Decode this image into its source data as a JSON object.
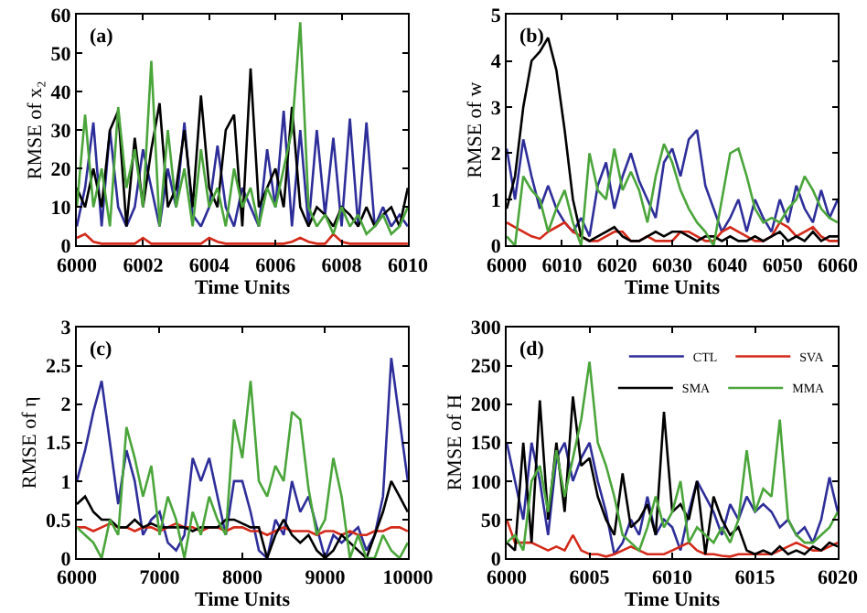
{
  "chart_data": [
    {
      "type": "line",
      "xlabel": "Time Units",
      "ylabel": "RMSE of x₂",
      "annotations": [
        "(a)"
      ],
      "x": [
        6000,
        6000.25,
        6000.5,
        6000.75,
        6001,
        6001.25,
        6001.5,
        6001.75,
        6002,
        6002.25,
        6002.5,
        6002.75,
        6003,
        6003.25,
        6003.5,
        6003.75,
        6004,
        6004.25,
        6004.5,
        6004.75,
        6005,
        6005.25,
        6005.5,
        6005.75,
        6006,
        6006.25,
        6006.5,
        6006.75,
        6007,
        6007.25,
        6007.5,
        6007.75,
        6008,
        6008.25,
        6008.5,
        6008.75,
        6009,
        6009.25,
        6009.5,
        6009.75,
        6010
      ],
      "xlim": [
        6000,
        6010
      ],
      "xticks": [
        6000,
        6002,
        6004,
        6006,
        6008,
        6010
      ],
      "ylim": [
        0,
        60
      ],
      "yticks": [
        0,
        10,
        20,
        30,
        40,
        50,
        60
      ],
      "grid": false,
      "series": [
        {
          "color": "#2e2e9a",
          "values": [
            5,
            15,
            32,
            5,
            30,
            10,
            5,
            10,
            25,
            15,
            5,
            20,
            10,
            32,
            8,
            5,
            10,
            26,
            10,
            5,
            15,
            10,
            5,
            25,
            10,
            35,
            5,
            30,
            5,
            30,
            8,
            28,
            5,
            33,
            5,
            32,
            5,
            10,
            5,
            8,
            5
          ]
        },
        {
          "color": "#d42a1a",
          "values": [
            2,
            3,
            1,
            0.5,
            0.5,
            0.5,
            0.5,
            0.5,
            2,
            0.5,
            0.5,
            0.5,
            0.5,
            0.5,
            0.5,
            0.5,
            2,
            1,
            0.5,
            0.5,
            0.5,
            0.5,
            0.5,
            0.5,
            0.5,
            0.5,
            1,
            2,
            1,
            0.5,
            0.5,
            3,
            1,
            0.5,
            0.5,
            0.5,
            0.5,
            0.5,
            0.5,
            0.5,
            0.5
          ]
        },
        {
          "color": "#000000",
          "values": [
            15,
            10,
            20,
            10,
            30,
            35,
            5,
            28,
            10,
            25,
            37,
            10,
            15,
            30,
            10,
            39,
            15,
            10,
            30,
            34,
            5,
            46,
            10,
            15,
            20,
            10,
            36,
            10,
            5,
            10,
            8,
            5,
            10,
            8,
            5,
            10,
            5,
            8,
            10,
            5,
            15
          ]
        },
        {
          "color": "#4aa53a",
          "values": [
            10,
            34,
            10,
            20,
            5,
            36,
            15,
            25,
            10,
            48,
            5,
            30,
            10,
            20,
            5,
            25,
            10,
            15,
            5,
            20,
            10,
            15,
            5,
            15,
            10,
            20,
            30,
            58,
            10,
            5,
            8,
            3,
            10,
            5,
            8,
            3,
            5,
            8,
            3,
            5,
            10
          ]
        }
      ]
    },
    {
      "type": "line",
      "xlabel": "Time Units",
      "ylabel": "RMSE of w",
      "annotations": [
        "(b)"
      ],
      "x": [
        6000,
        6001.5,
        6003,
        6004.5,
        6006,
        6007.5,
        6009,
        6010.5,
        6012,
        6013.5,
        6015,
        6016.5,
        6018,
        6019.5,
        6021,
        6022.5,
        6024,
        6025.5,
        6027,
        6028.5,
        6030,
        6031.5,
        6033,
        6034.5,
        6036,
        6037.5,
        6039,
        6040.5,
        6042,
        6043.5,
        6045,
        6046.5,
        6048,
        6049.5,
        6051,
        6052.5,
        6054,
        6055.5,
        6057,
        6058.5,
        6060
      ],
      "xlim": [
        6000,
        6060
      ],
      "xticks": [
        6000,
        6010,
        6020,
        6030,
        6040,
        6050,
        6060
      ],
      "ylim": [
        0,
        5
      ],
      "yticks": [
        0,
        1,
        2,
        3,
        4,
        5
      ],
      "grid": false,
      "series": [
        {
          "color": "#2e2e9a",
          "values": [
            2.1,
            1.0,
            2.3,
            1.5,
            0.8,
            1.3,
            0.8,
            0.5,
            0.3,
            0.6,
            0.2,
            1.3,
            1.8,
            0.8,
            1.5,
            2.0,
            1.4,
            1.0,
            0.6,
            1.8,
            2.1,
            1.5,
            2.3,
            2.5,
            1.3,
            0.8,
            0.3,
            0.6,
            1.0,
            0.3,
            1.0,
            0.6,
            0.3,
            1.0,
            0.5,
            1.3,
            0.8,
            0.5,
            1.2,
            0.6,
            1.0
          ]
        },
        {
          "color": "#d42a1a",
          "values": [
            0.5,
            0.4,
            0.3,
            0.2,
            0.15,
            0.3,
            0.4,
            0.5,
            0.3,
            0.2,
            0.1,
            0.1,
            0.2,
            0.3,
            0.3,
            0.1,
            0.1,
            0.2,
            0.1,
            0.1,
            0.1,
            0.3,
            0.3,
            0.2,
            0.1,
            0.1,
            0.3,
            0.4,
            0.3,
            0.2,
            0.1,
            0.1,
            0.2,
            0.5,
            0.4,
            0.2,
            0.3,
            0.4,
            0.2,
            0.1,
            0.1
          ]
        },
        {
          "color": "#000000",
          "values": [
            0.8,
            1.5,
            3.0,
            4.0,
            4.2,
            4.5,
            3.8,
            2.5,
            1.0,
            0.2,
            0.1,
            0.2,
            0.3,
            0.4,
            0.2,
            0.1,
            0.1,
            0.2,
            0.3,
            0.2,
            0.3,
            0.3,
            0.2,
            0.1,
            0.2,
            0.2,
            0.1,
            0.2,
            0.1,
            0.1,
            0.2,
            0.1,
            0.2,
            0.3,
            0.1,
            0.2,
            0.1,
            0.3,
            0.1,
            0.2,
            0.2
          ]
        },
        {
          "color": "#4aa53a",
          "values": [
            0.2,
            0,
            1.5,
            1.2,
            1.0,
            0.3,
            0.8,
            1.2,
            0.5,
            0,
            2.0,
            1.2,
            1.0,
            2.1,
            1.2,
            1.6,
            1.2,
            0.5,
            1.5,
            2.2,
            1.8,
            1.2,
            0.8,
            0.5,
            0.3,
            0,
            1.0,
            2.0,
            2.1,
            1.5,
            0.8,
            0.5,
            0.6,
            0.5,
            0.8,
            1.0,
            1.5,
            1.2,
            0.8,
            0.6,
            0.5
          ]
        }
      ]
    },
    {
      "type": "line",
      "xlabel": "Time Units",
      "ylabel": "RMSE of η",
      "annotations": [
        "(c)"
      ],
      "x": [
        6000,
        6100,
        6200,
        6300,
        6400,
        6500,
        6600,
        6700,
        6800,
        6900,
        7000,
        7100,
        7200,
        7300,
        7400,
        7500,
        7600,
        7700,
        7800,
        7900,
        8000,
        8100,
        8200,
        8300,
        8400,
        8500,
        8600,
        8700,
        8800,
        8900,
        9000,
        9100,
        9200,
        9300,
        9400,
        9500,
        9600,
        9700,
        9800,
        9900,
        10000
      ],
      "xlim": [
        6000,
        10000
      ],
      "xticks": [
        6000,
        7000,
        8000,
        9000,
        10000
      ],
      "ylim": [
        0,
        3
      ],
      "yticks": [
        0,
        0.5,
        1,
        1.5,
        2,
        2.5,
        3
      ],
      "grid": false,
      "series": [
        {
          "color": "#2e2e9a",
          "values": [
            1.0,
            1.4,
            1.9,
            2.3,
            1.5,
            0.7,
            1.4,
            1.0,
            0.3,
            0.5,
            0.6,
            0.2,
            0.1,
            0.3,
            1.3,
            1.0,
            1.3,
            0.8,
            0.3,
            1.0,
            1.0,
            0.6,
            0.1,
            0.0,
            0.5,
            0.3,
            1.0,
            0.6,
            0.8,
            0.4,
            0.0,
            0.3,
            0.2,
            0.3,
            0.4,
            0.1,
            0.3,
            0.8,
            2.6,
            1.8,
            1.0
          ]
        },
        {
          "color": "#d42a1a",
          "values": [
            0.4,
            0.4,
            0.35,
            0.4,
            0.45,
            0.4,
            0.4,
            0.35,
            0.4,
            0.4,
            0.35,
            0.4,
            0.45,
            0.4,
            0.4,
            0.35,
            0.4,
            0.4,
            0.35,
            0.4,
            0.4,
            0.35,
            0.35,
            0.3,
            0.35,
            0.4,
            0.35,
            0.35,
            0.35,
            0.3,
            0.35,
            0.35,
            0.3,
            0.35,
            0.3,
            0.3,
            0.35,
            0.35,
            0.4,
            0.4,
            0.35
          ]
        },
        {
          "color": "#000000",
          "values": [
            0.7,
            0.8,
            0.6,
            0.5,
            0.5,
            0.4,
            0.4,
            0.5,
            0.4,
            0.45,
            0.4,
            0.4,
            0.4,
            0.4,
            0.35,
            0.4,
            0.4,
            0.4,
            0.5,
            0.5,
            0.45,
            0.4,
            0.4,
            0.0,
            0.3,
            0.5,
            0.3,
            0.2,
            0.3,
            0.1,
            0.0,
            0.1,
            0.3,
            0.2,
            0.1,
            0.0,
            0.3,
            0.6,
            1.0,
            0.8,
            0.6
          ]
        },
        {
          "color": "#4aa53a",
          "values": [
            0.4,
            0.3,
            0.2,
            0.0,
            0.5,
            0.3,
            1.7,
            1.3,
            0.8,
            1.2,
            0.3,
            0.8,
            0.5,
            0.0,
            0.6,
            0.3,
            0.8,
            0.5,
            0.3,
            1.8,
            1.3,
            2.3,
            1.0,
            0.8,
            1.2,
            1.0,
            1.9,
            1.8,
            0.9,
            0.3,
            0.5,
            1.3,
            0.8,
            0.0,
            0.3,
            0.0,
            0.0,
            0.3,
            0.1,
            0.0,
            0.2
          ]
        }
      ]
    },
    {
      "type": "line",
      "xlabel": "Time Units",
      "ylabel": "RMSE of H",
      "annotations": [
        "(d)"
      ],
      "legend": "top right",
      "x": [
        6000,
        6000.5,
        6001,
        6001.5,
        6002,
        6002.5,
        6003,
        6003.5,
        6004,
        6004.5,
        6005,
        6005.5,
        6006,
        6006.5,
        6007,
        6007.5,
        6008,
        6008.5,
        6009,
        6009.5,
        6010,
        6010.5,
        6011,
        6011.5,
        6012,
        6012.5,
        6013,
        6013.5,
        6014,
        6014.5,
        6015,
        6015.5,
        6016,
        6016.5,
        6017,
        6017.5,
        6018,
        6018.5,
        6019,
        6019.5,
        6020
      ],
      "xlim": [
        6000,
        6020
      ],
      "xticks": [
        6000,
        6005,
        6010,
        6015,
        6020
      ],
      "ylim": [
        0,
        300
      ],
      "yticks": [
        0,
        50,
        100,
        150,
        200,
        250,
        300
      ],
      "grid": false,
      "series": [
        {
          "name": "CTL",
          "color": "#2e2e9a",
          "values": [
            150,
            100,
            50,
            150,
            100,
            30,
            130,
            150,
            100,
            130,
            150,
            100,
            60,
            5,
            20,
            50,
            30,
            80,
            30,
            50,
            40,
            10,
            60,
            100,
            80,
            60,
            30,
            70,
            50,
            80,
            60,
            70,
            60,
            40,
            50,
            30,
            40,
            20,
            50,
            105,
            60
          ]
        },
        {
          "name": "SVA",
          "color": "#d42a1a",
          "values": [
            50,
            20,
            20,
            20,
            15,
            10,
            15,
            10,
            30,
            10,
            5,
            5,
            2,
            5,
            10,
            15,
            10,
            5,
            5,
            5,
            10,
            15,
            20,
            10,
            5,
            5,
            3,
            2,
            5,
            5,
            5,
            5,
            5,
            10,
            15,
            20,
            15,
            10,
            10,
            15,
            20
          ]
        },
        {
          "name": "SMA",
          "color": "#000000",
          "values": [
            20,
            10,
            150,
            20,
            205,
            50,
            150,
            60,
            210,
            120,
            130,
            80,
            50,
            30,
            110,
            40,
            50,
            70,
            30,
            190,
            60,
            70,
            50,
            100,
            5,
            80,
            50,
            30,
            40,
            10,
            5,
            10,
            5,
            15,
            5,
            10,
            5,
            15,
            10,
            20,
            15
          ]
        },
        {
          "name": "MMA",
          "color": "#4aa53a",
          "values": [
            20,
            30,
            10,
            100,
            120,
            60,
            140,
            80,
            130,
            180,
            255,
            150,
            120,
            80,
            30,
            20,
            10,
            40,
            80,
            40,
            60,
            100,
            20,
            40,
            30,
            20,
            40,
            20,
            50,
            140,
            60,
            90,
            80,
            180,
            50,
            30,
            20,
            20,
            30,
            40,
            60
          ]
        }
      ]
    }
  ]
}
